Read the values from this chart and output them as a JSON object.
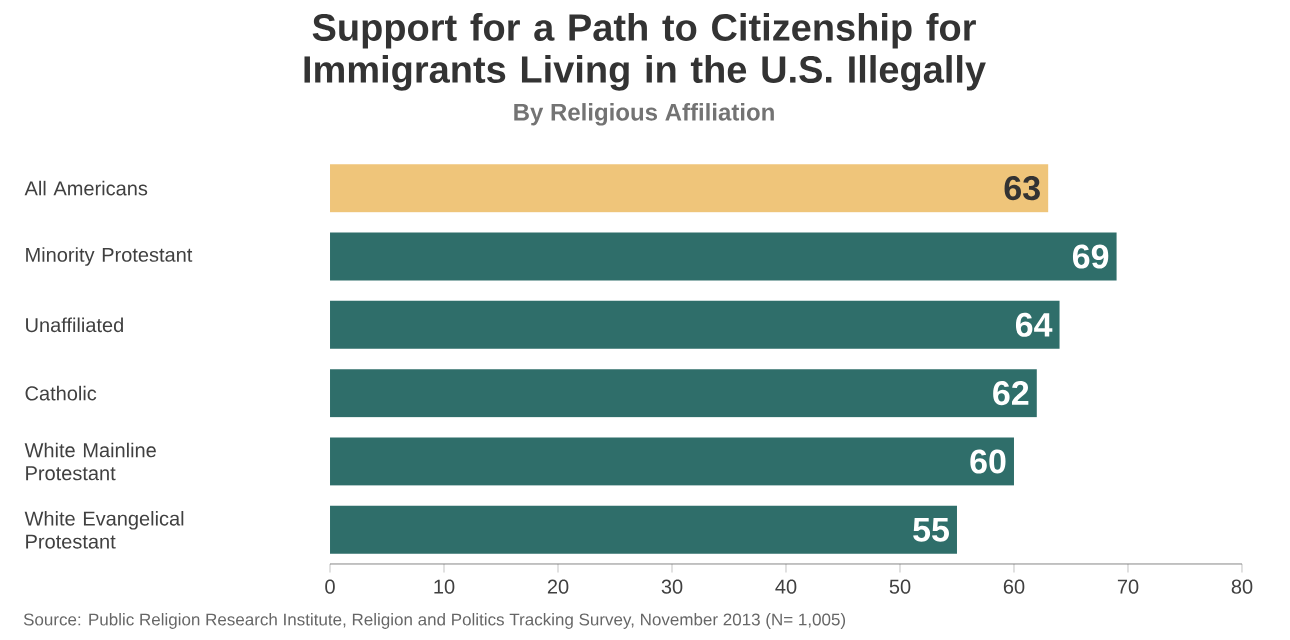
{
  "chart_data": {
    "type": "bar",
    "orientation": "horizontal",
    "title": "Support for a Path to Citizenship for Immigrants Living in the U.S. Illegally",
    "subtitle": "By Religious Affiliation",
    "categories": [
      "All Americans",
      "Minority Protestant",
      "Unaffiliated",
      "Catholic",
      "White Mainline Protestant",
      "White Evangelical Protestant"
    ],
    "values": [
      63,
      69,
      64,
      62,
      60,
      55
    ],
    "colors": [
      "#efc57a",
      "#2f6e6a",
      "#2f6e6a",
      "#2f6e6a",
      "#2f6e6a",
      "#2f6e6a"
    ],
    "xlim": [
      0,
      80
    ],
    "xticks": [
      0,
      10,
      20,
      30,
      40,
      50,
      60,
      70,
      80
    ],
    "data_labels": true,
    "grid": false,
    "annotations": [
      "Source: Public Religion Research Institute, Religion and Politics Tracking Survey, November 2013 (N= 1,005)"
    ]
  }
}
